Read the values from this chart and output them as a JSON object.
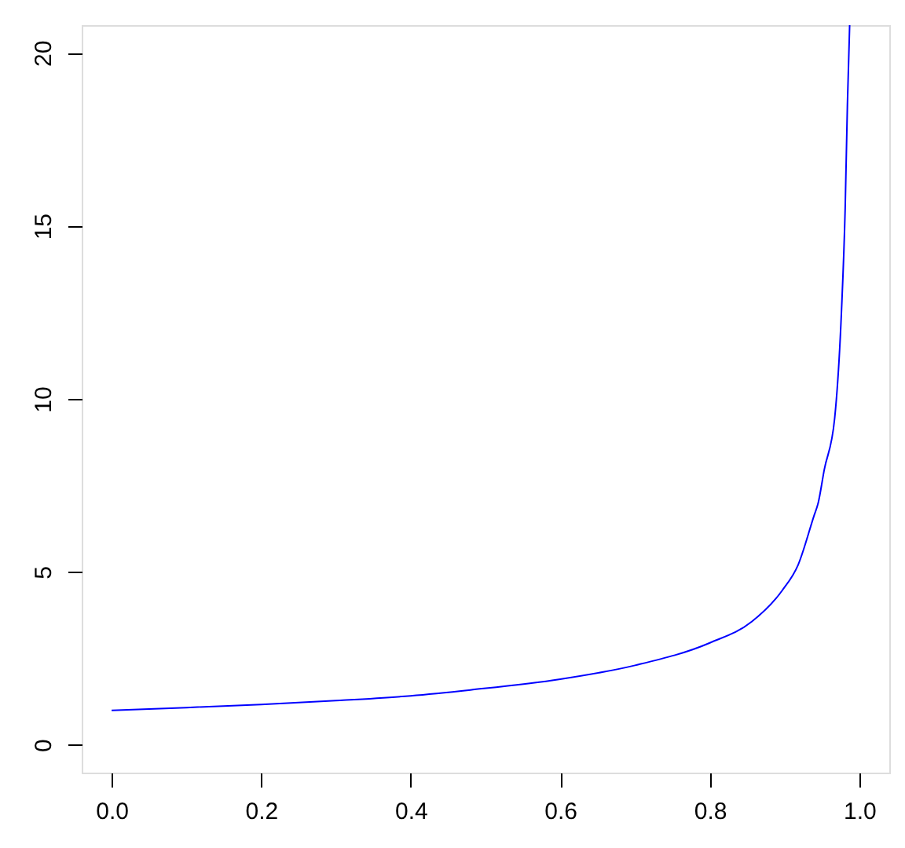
{
  "chart_data": {
    "type": "line",
    "x": [
      0,
      0.1,
      0.2,
      0.3,
      0.4,
      0.48,
      0.6,
      0.7,
      0.8,
      0.856,
      0.897,
      0.918,
      0.939,
      0.945,
      0.953,
      0.967,
      0.976,
      0.981,
      0.984,
      0.987
    ],
    "series": [
      {
        "color": "#0000ff",
        "values": [
          1.0,
          1.08,
          1.17,
          1.28,
          1.42,
          1.59,
          1.9,
          2.3,
          2.95,
          3.56,
          4.47,
          5.2,
          6.6,
          7.0,
          7.95,
          9.45,
          12.5,
          15.5,
          18.5,
          20.8
        ]
      }
    ],
    "xlim": [
      -0.04,
      1.04
    ],
    "ylim": [
      -0.8,
      20.8
    ],
    "xticks": [
      {
        "value": 0,
        "label": "0.0"
      },
      0.2,
      0.4,
      0.6,
      0.8,
      {
        "value": 1,
        "label": "1.0"
      }
    ],
    "yticks": [
      0,
      5,
      10,
      15,
      20
    ],
    "grid": false,
    "marker": "none",
    "line_style": "solid"
  }
}
